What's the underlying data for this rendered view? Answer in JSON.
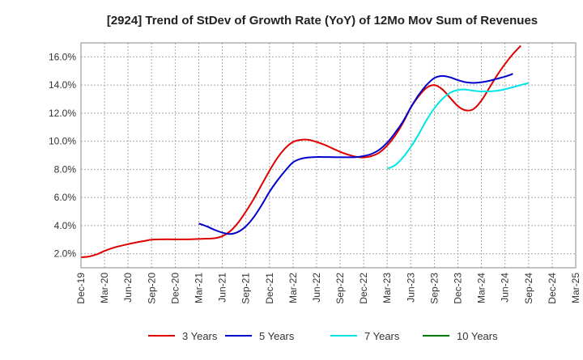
{
  "chart_data": {
    "type": "line",
    "title": "[2924]  Trend of StDev of Growth Rate (YoY) of 12Mo Mov Sum of Revenues",
    "xlabel": "",
    "ylabel": "",
    "ylim": [
      1.0,
      17.0
    ],
    "y_ticks": [
      2.0,
      4.0,
      6.0,
      8.0,
      10.0,
      12.0,
      14.0,
      16.0
    ],
    "y_tick_labels": [
      "2.0%",
      "4.0%",
      "6.0%",
      "8.0%",
      "10.0%",
      "12.0%",
      "14.0%",
      "16.0%"
    ],
    "x_tick_labels": [
      "Dec-19",
      "Mar-20",
      "Jun-20",
      "Sep-20",
      "Dec-20",
      "Mar-21",
      "Jun-21",
      "Sep-21",
      "Dec-21",
      "Mar-22",
      "Jun-22",
      "Sep-22",
      "Dec-22",
      "Mar-23",
      "Jun-23",
      "Sep-23",
      "Dec-23",
      "Mar-24",
      "Jun-24",
      "Sep-24",
      "Dec-24",
      "Mar-25"
    ],
    "x_start": "2019-12",
    "x_months_total": 63,
    "grid": true,
    "legend_position": "bottom",
    "series": [
      {
        "name": "3 Years",
        "color": "#dd0000",
        "start_month": 0,
        "values": [
          1.75,
          1.8,
          1.95,
          2.2,
          2.4,
          2.55,
          2.68,
          2.8,
          2.9,
          3.0,
          3.02,
          3.03,
          3.02,
          3.02,
          3.03,
          3.05,
          3.07,
          3.1,
          3.25,
          3.6,
          4.2,
          5.0,
          5.9,
          6.9,
          7.9,
          8.8,
          9.5,
          9.95,
          10.1,
          10.1,
          9.95,
          9.75,
          9.5,
          9.25,
          9.05,
          8.9,
          8.85,
          8.95,
          9.2,
          9.7,
          10.4,
          11.3,
          12.4,
          13.2,
          13.8,
          14.0,
          13.7,
          13.1,
          12.5,
          12.2,
          12.3,
          12.9,
          13.8,
          14.7,
          15.5,
          16.2,
          16.8
        ]
      },
      {
        "name": "5 Years",
        "color": "#0000cc",
        "start_month": 15,
        "values": [
          4.15,
          3.95,
          3.7,
          3.5,
          3.4,
          3.55,
          3.95,
          4.6,
          5.45,
          6.4,
          7.2,
          7.9,
          8.5,
          8.75,
          8.85,
          8.88,
          8.88,
          8.87,
          8.86,
          8.86,
          8.87,
          8.95,
          9.1,
          9.4,
          9.9,
          10.6,
          11.4,
          12.4,
          13.3,
          14.0,
          14.5,
          14.65,
          14.55,
          14.35,
          14.2,
          14.15,
          14.2,
          14.3,
          14.45,
          14.6,
          14.8
        ]
      },
      {
        "name": "7 Years",
        "color": "#00e5e5",
        "start_month": 39,
        "values": [
          8.05,
          8.3,
          8.85,
          9.6,
          10.5,
          11.5,
          12.35,
          13.0,
          13.45,
          13.65,
          13.68,
          13.6,
          13.55,
          13.55,
          13.6,
          13.7,
          13.85,
          14.0,
          14.15
        ]
      },
      {
        "name": "10 Years",
        "color": "#007700",
        "start_month": null,
        "values": []
      }
    ]
  }
}
